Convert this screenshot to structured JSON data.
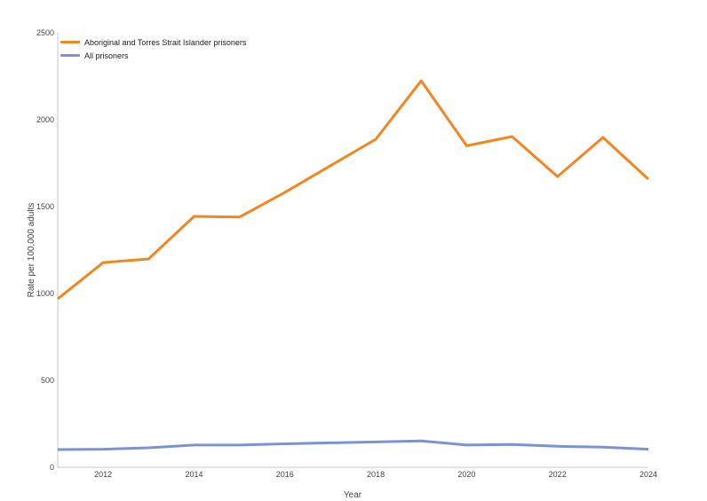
{
  "chart_data": {
    "type": "line",
    "title": "",
    "xlabel": "Year",
    "ylabel": "Rate per 100,000 adults",
    "x": [
      2011,
      2012,
      2013,
      2014,
      2015,
      2016,
      2017,
      2018,
      2019,
      2020,
      2021,
      2022,
      2023,
      2024
    ],
    "xticks": [
      2012,
      2014,
      2016,
      2018,
      2020,
      2022,
      2024
    ],
    "yticks": [
      0,
      500,
      1000,
      1500,
      2000,
      2500
    ],
    "ylim": [
      0,
      2500
    ],
    "xlim": [
      2011,
      2024
    ],
    "grid": false,
    "legend_position": "top-left",
    "series": [
      {
        "name": "Aboriginal and Torres Strait Islander prisoners",
        "color": "#f5861f",
        "values": [
          969,
          1178,
          1199,
          1444,
          1440,
          1582,
          1735,
          1888,
          2224,
          1850,
          1903,
          1673,
          1898,
          1658
        ]
      },
      {
        "name": "All prisoners",
        "color": "#7b93d4",
        "values": [
          102,
          104,
          112,
          128,
          128,
          135,
          141,
          146,
          152,
          128,
          131,
          121,
          116,
          104
        ]
      }
    ]
  }
}
